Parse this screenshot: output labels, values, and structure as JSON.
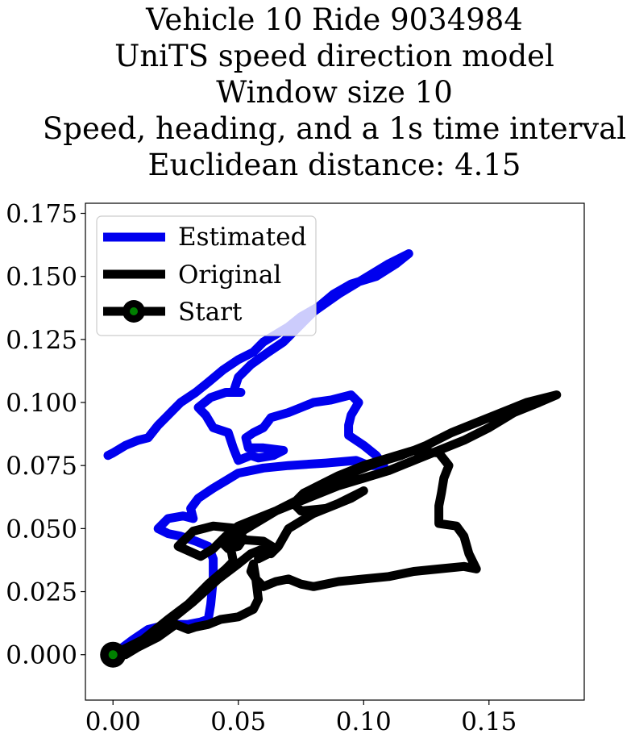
{
  "chart_data": {
    "type": "line",
    "title_lines": [
      "Vehicle 10 Ride 9034984",
      "UniTS speed direction model",
      "Window size 10",
      "Speed, heading, and a 1s time interval",
      "Euclidean distance: 4.15"
    ],
    "xlabel": "",
    "ylabel": "",
    "xlim": [
      -0.011,
      0.188
    ],
    "ylim": [
      -0.018,
      0.179
    ],
    "x_ticks": [
      0.0,
      0.05,
      0.1,
      0.15
    ],
    "x_tick_labels": [
      "0.00",
      "0.05",
      "0.10",
      "0.15"
    ],
    "y_ticks": [
      0.0,
      0.025,
      0.05,
      0.075,
      0.1,
      0.125,
      0.15,
      0.175
    ],
    "y_tick_labels": [
      "0.000",
      "0.025",
      "0.050",
      "0.075",
      "0.100",
      "0.125",
      "0.150",
      "0.175"
    ],
    "grid": false,
    "legend_placement": "upper-left",
    "legend": [
      {
        "label": "Estimated",
        "color": "#0000ee"
      },
      {
        "label": "Original",
        "color": "#000000"
      },
      {
        "label": "Start",
        "color": "#000000",
        "marker_color": "#008000"
      }
    ],
    "series": [
      {
        "name": "Estimated",
        "color": "#0000ee",
        "points": [
          [
            0.0,
            0.0
          ],
          [
            0.008,
            0.006
          ],
          [
            0.014,
            0.01
          ],
          [
            0.022,
            0.012
          ],
          [
            0.03,
            0.012
          ],
          [
            0.035,
            0.013
          ],
          [
            0.038,
            0.014
          ],
          [
            0.039,
            0.02
          ],
          [
            0.04,
            0.03
          ],
          [
            0.04,
            0.038
          ],
          [
            0.038,
            0.043
          ],
          [
            0.033,
            0.045
          ],
          [
            0.027,
            0.047
          ],
          [
            0.022,
            0.048
          ],
          [
            0.018,
            0.05
          ],
          [
            0.022,
            0.054
          ],
          [
            0.028,
            0.055
          ],
          [
            0.032,
            0.054
          ],
          [
            0.031,
            0.058
          ],
          [
            0.034,
            0.062
          ],
          [
            0.04,
            0.066
          ],
          [
            0.045,
            0.069
          ],
          [
            0.05,
            0.072
          ],
          [
            0.06,
            0.074
          ],
          [
            0.07,
            0.075
          ],
          [
            0.085,
            0.076
          ],
          [
            0.097,
            0.077
          ],
          [
            0.102,
            0.075
          ],
          [
            0.108,
            0.075
          ],
          [
            0.105,
            0.079
          ],
          [
            0.1,
            0.083
          ],
          [
            0.094,
            0.087
          ],
          [
            0.094,
            0.091
          ],
          [
            0.095,
            0.095
          ],
          [
            0.098,
            0.1
          ],
          [
            0.095,
            0.103
          ],
          [
            0.087,
            0.101
          ],
          [
            0.08,
            0.1
          ],
          [
            0.075,
            0.098
          ],
          [
            0.07,
            0.096
          ],
          [
            0.063,
            0.094
          ],
          [
            0.06,
            0.09
          ],
          [
            0.056,
            0.088
          ],
          [
            0.053,
            0.086
          ],
          [
            0.054,
            0.082
          ],
          [
            0.06,
            0.082
          ],
          [
            0.068,
            0.081
          ],
          [
            0.064,
            0.079
          ],
          [
            0.058,
            0.078
          ],
          [
            0.055,
            0.079
          ],
          [
            0.05,
            0.077
          ],
          [
            0.048,
            0.082
          ],
          [
            0.046,
            0.088
          ],
          [
            0.04,
            0.09
          ],
          [
            0.037,
            0.095
          ],
          [
            0.034,
            0.098
          ],
          [
            0.039,
            0.102
          ],
          [
            0.045,
            0.104
          ],
          [
            0.051,
            0.104
          ],
          [
            0.048,
            0.104
          ],
          [
            0.05,
            0.11
          ],
          [
            0.055,
            0.115
          ],
          [
            0.062,
            0.12
          ],
          [
            0.068,
            0.124
          ],
          [
            0.074,
            0.13
          ],
          [
            0.08,
            0.136
          ],
          [
            0.09,
            0.143
          ],
          [
            0.1,
            0.149
          ],
          [
            0.11,
            0.155
          ],
          [
            0.118,
            0.159
          ],
          [
            0.113,
            0.155
          ],
          [
            0.105,
            0.15
          ],
          [
            0.095,
            0.147
          ],
          [
            0.088,
            0.143
          ],
          [
            0.082,
            0.138
          ],
          [
            0.075,
            0.134
          ],
          [
            0.07,
            0.13
          ],
          [
            0.065,
            0.127
          ],
          [
            0.06,
            0.124
          ],
          [
            0.056,
            0.12
          ],
          [
            0.05,
            0.117
          ],
          [
            0.044,
            0.113
          ],
          [
            0.038,
            0.108
          ],
          [
            0.033,
            0.104
          ],
          [
            0.027,
            0.1
          ],
          [
            0.022,
            0.095
          ],
          [
            0.018,
            0.091
          ],
          [
            0.014,
            0.086
          ],
          [
            0.01,
            0.085
          ],
          [
            0.005,
            0.083
          ],
          [
            0.0,
            0.08
          ],
          [
            -0.002,
            0.079
          ]
        ]
      },
      {
        "name": "Original",
        "color": "#000000",
        "points": [
          [
            0.0,
            0.0
          ],
          [
            0.012,
            0.006
          ],
          [
            0.022,
            0.013
          ],
          [
            0.032,
            0.021
          ],
          [
            0.042,
            0.03
          ],
          [
            0.05,
            0.036
          ],
          [
            0.055,
            0.04
          ],
          [
            0.06,
            0.042
          ],
          [
            0.063,
            0.04
          ],
          [
            0.066,
            0.043
          ],
          [
            0.07,
            0.05
          ],
          [
            0.08,
            0.056
          ],
          [
            0.09,
            0.06
          ],
          [
            0.1,
            0.065
          ],
          [
            0.095,
            0.062
          ],
          [
            0.085,
            0.058
          ],
          [
            0.075,
            0.057
          ],
          [
            0.072,
            0.06
          ],
          [
            0.076,
            0.064
          ],
          [
            0.082,
            0.067
          ],
          [
            0.09,
            0.071
          ],
          [
            0.1,
            0.075
          ],
          [
            0.11,
            0.078
          ],
          [
            0.12,
            0.081
          ],
          [
            0.13,
            0.08
          ],
          [
            0.134,
            0.075
          ],
          [
            0.132,
            0.07
          ],
          [
            0.131,
            0.064
          ],
          [
            0.13,
            0.059
          ],
          [
            0.13,
            0.052
          ],
          [
            0.137,
            0.051
          ],
          [
            0.14,
            0.047
          ],
          [
            0.142,
            0.04
          ],
          [
            0.145,
            0.034
          ],
          [
            0.14,
            0.035
          ],
          [
            0.13,
            0.034
          ],
          [
            0.12,
            0.033
          ],
          [
            0.11,
            0.031
          ],
          [
            0.1,
            0.03
          ],
          [
            0.09,
            0.029
          ],
          [
            0.085,
            0.028
          ],
          [
            0.08,
            0.027
          ],
          [
            0.075,
            0.028
          ],
          [
            0.07,
            0.03
          ],
          [
            0.065,
            0.029
          ],
          [
            0.06,
            0.027
          ],
          [
            0.057,
            0.03
          ],
          [
            0.055,
            0.033
          ],
          [
            0.056,
            0.036
          ],
          [
            0.057,
            0.03
          ],
          [
            0.058,
            0.022
          ],
          [
            0.056,
            0.018
          ],
          [
            0.05,
            0.015
          ],
          [
            0.043,
            0.014
          ],
          [
            0.038,
            0.012
          ],
          [
            0.033,
            0.011
          ],
          [
            0.03,
            0.01
          ],
          [
            0.025,
            0.012
          ],
          [
            0.018,
            0.007
          ],
          [
            0.01,
            0.003
          ],
          [
            0.005,
            0.0
          ],
          [
            0.012,
            0.006
          ],
          [
            0.022,
            0.014
          ],
          [
            0.03,
            0.02
          ],
          [
            0.038,
            0.028
          ],
          [
            0.045,
            0.034
          ],
          [
            0.048,
            0.037
          ],
          [
            0.047,
            0.042
          ],
          [
            0.05,
            0.048
          ],
          [
            0.055,
            0.051
          ],
          [
            0.065,
            0.057
          ],
          [
            0.075,
            0.062
          ],
          [
            0.085,
            0.068
          ],
          [
            0.095,
            0.072
          ],
          [
            0.105,
            0.076
          ],
          [
            0.115,
            0.079
          ],
          [
            0.125,
            0.083
          ],
          [
            0.135,
            0.088
          ],
          [
            0.145,
            0.092
          ],
          [
            0.155,
            0.096
          ],
          [
            0.165,
            0.1
          ],
          [
            0.177,
            0.103
          ],
          [
            0.17,
            0.1
          ],
          [
            0.16,
            0.096
          ],
          [
            0.15,
            0.09
          ],
          [
            0.14,
            0.085
          ],
          [
            0.13,
            0.081
          ],
          [
            0.12,
            0.077
          ],
          [
            0.11,
            0.073
          ],
          [
            0.1,
            0.07
          ],
          [
            0.09,
            0.067
          ],
          [
            0.08,
            0.063
          ],
          [
            0.07,
            0.059
          ],
          [
            0.06,
            0.055
          ],
          [
            0.05,
            0.051
          ],
          [
            0.045,
            0.047
          ],
          [
            0.04,
            0.042
          ],
          [
            0.035,
            0.039
          ],
          [
            0.026,
            0.043
          ],
          [
            0.032,
            0.049
          ],
          [
            0.04,
            0.051
          ],
          [
            0.05,
            0.05
          ],
          [
            0.052,
            0.046
          ],
          [
            0.05,
            0.043
          ],
          [
            0.046,
            0.042
          ],
          [
            0.044,
            0.044
          ],
          [
            0.046,
            0.046
          ],
          [
            0.06,
            0.045
          ],
          [
            0.065,
            0.042
          ],
          [
            0.062,
            0.04
          ],
          [
            0.058,
            0.038
          ]
        ]
      }
    ],
    "start_point": [
      0.0,
      0.0
    ],
    "start_marker_color": "#008000"
  }
}
